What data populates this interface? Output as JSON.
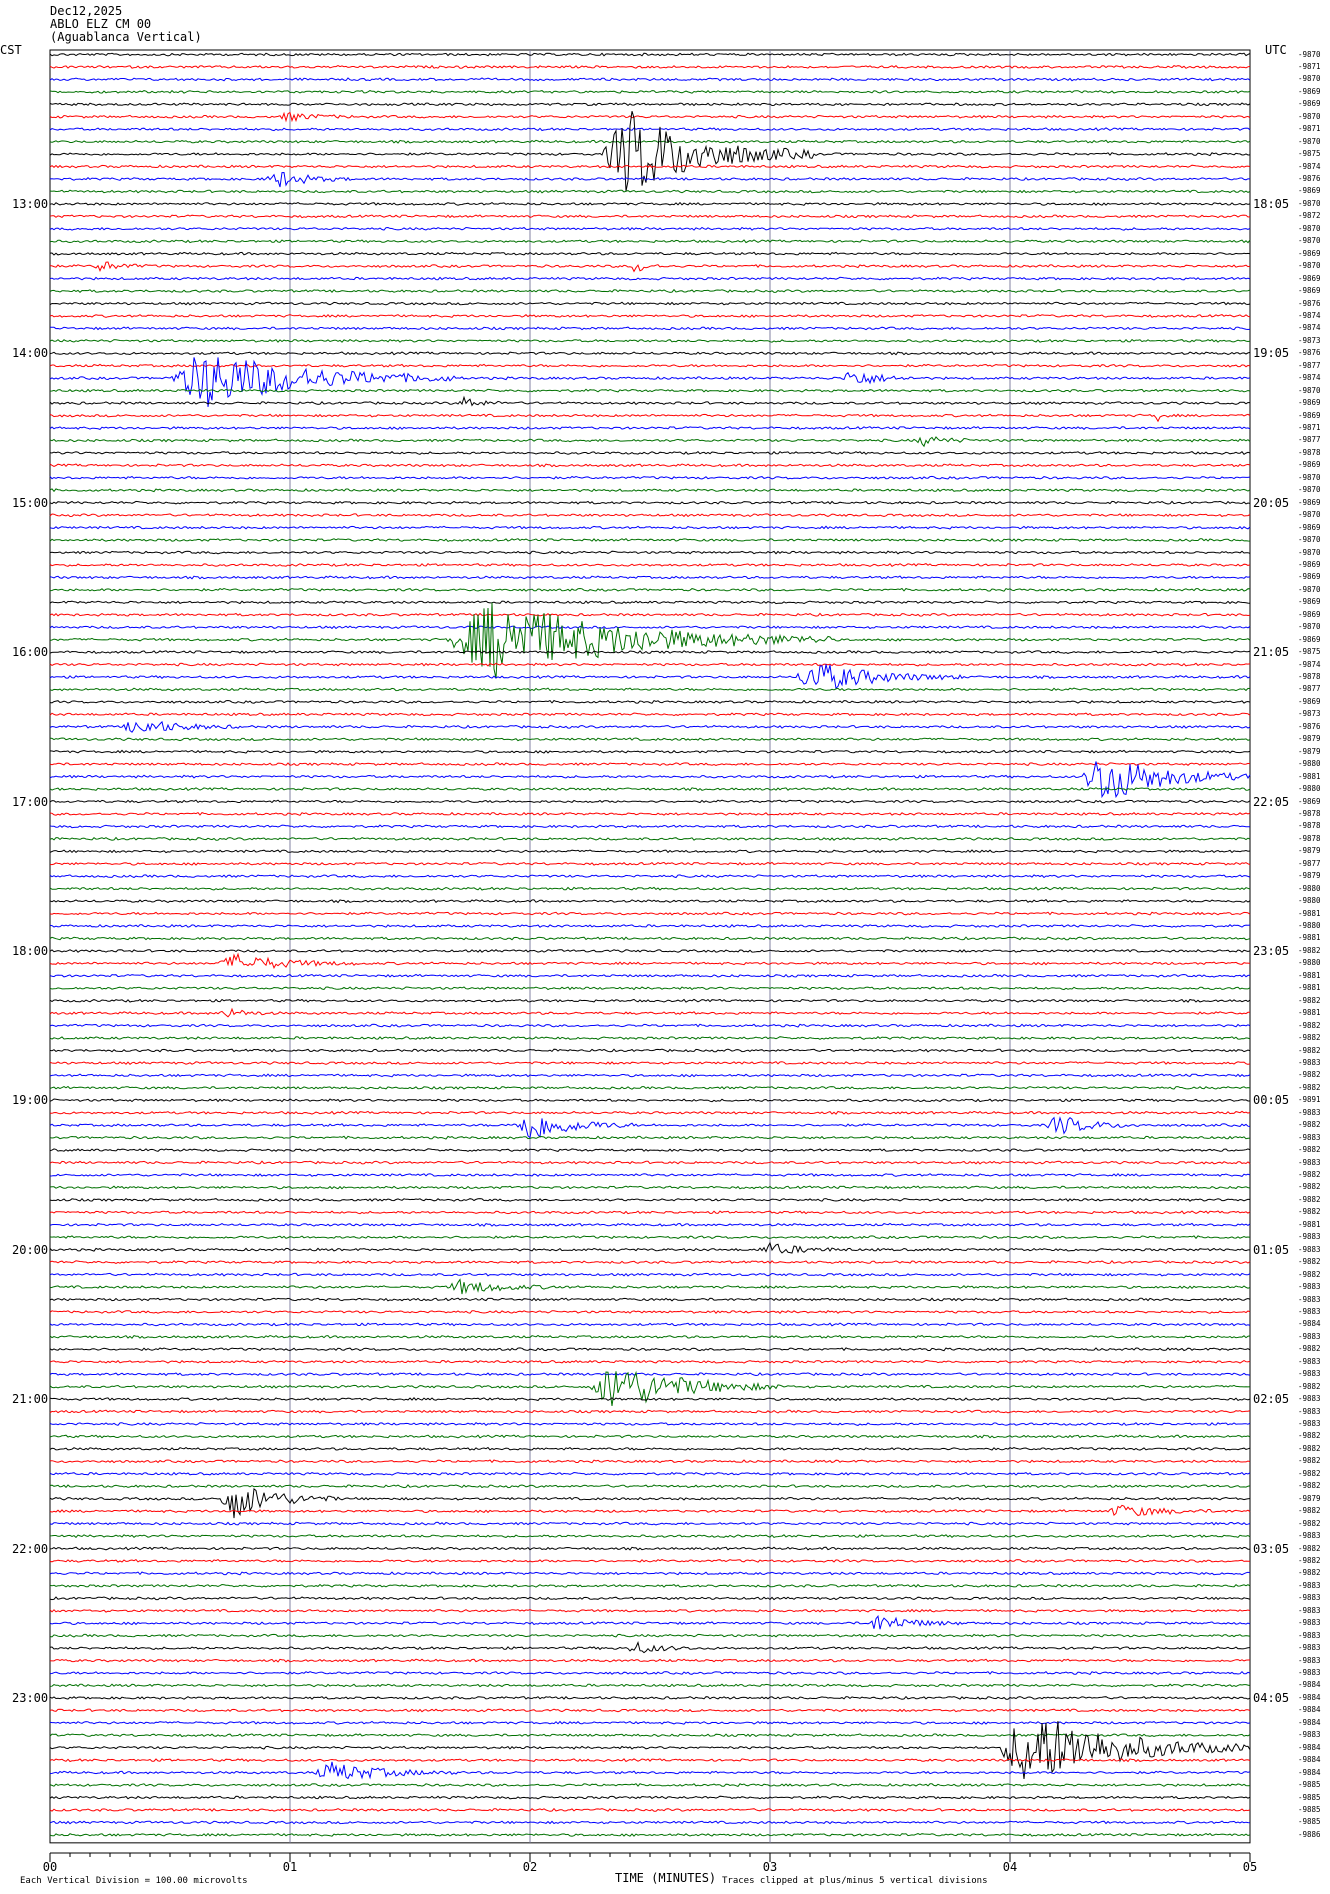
{
  "header": {
    "date": "Dec12,2025",
    "station": "ABLO ELZ CM 00",
    "site": "(Aguablanca Vertical)"
  },
  "left_zone": "CST",
  "right_zone": "UTC",
  "bottom": {
    "xlabel": "TIME (MINUTES)",
    "division_note": "Each Vertical Division =  100.00 microvolts",
    "clip_note": "Traces clipped at plus/minus 5 vertical divisions"
  },
  "colors": {
    "trace_cycle": [
      "#000000",
      "#ff0000",
      "#0000ff",
      "#007000"
    ],
    "grid": "#8080a0",
    "text": "#000000"
  },
  "chart_data": {
    "type": "line",
    "title": "",
    "xlabel": "TIME (MINUTES)",
    "ylabel": "",
    "x_ticks": [
      "00",
      "01",
      "02",
      "03",
      "04",
      "05"
    ],
    "xlim": [
      0,
      5
    ],
    "minutes_per_trace": 5,
    "trace_count": 144,
    "left_hour_labels": [
      {
        "trace": 12,
        "label": "13:00"
      },
      {
        "trace": 24,
        "label": "14:00"
      },
      {
        "trace": 36,
        "label": "15:00"
      },
      {
        "trace": 48,
        "label": "16:00"
      },
      {
        "trace": 60,
        "label": "17:00"
      },
      {
        "trace": 72,
        "label": "18:00"
      },
      {
        "trace": 84,
        "label": "19:00"
      },
      {
        "trace": 96,
        "label": "20:00"
      },
      {
        "trace": 108,
        "label": "21:00"
      },
      {
        "trace": 120,
        "label": "22:00"
      },
      {
        "trace": 132,
        "label": "23:00"
      }
    ],
    "right_hour_labels": [
      {
        "trace": 12,
        "label": "18:05"
      },
      {
        "trace": 24,
        "label": "19:05"
      },
      {
        "trace": 36,
        "label": "20:05"
      },
      {
        "trace": 48,
        "label": "21:05"
      },
      {
        "trace": 60,
        "label": "22:05"
      },
      {
        "trace": 72,
        "label": "23:05"
      },
      {
        "trace": 84,
        "label": "00:05"
      },
      {
        "trace": 96,
        "label": "01:05"
      },
      {
        "trace": 108,
        "label": "02:05"
      },
      {
        "trace": 120,
        "label": "03:05"
      },
      {
        "trace": 132,
        "label": "04:05"
      }
    ],
    "trace_offsets": [
      "-9870",
      "-9871",
      "-9870",
      "-9869",
      "-9869",
      "-9870",
      "-9871",
      "-9870",
      "-9875",
      "-9874",
      "-9876",
      "-9869",
      "-9870",
      "-9872",
      "-9870",
      "-9870",
      "-9869",
      "-9870",
      "-9869",
      "-9869",
      "-9876",
      "-9874",
      "-9874",
      "-9873",
      "-9876",
      "-9877",
      "-9874",
      "-9870",
      "-9869",
      "-9869",
      "-9871",
      "-9877",
      "-9878",
      "-9869",
      "-9870",
      "-9870",
      "-9869",
      "-9870",
      "-9869",
      "-9870",
      "-9870",
      "-9869",
      "-9869",
      "-9870",
      "-9869",
      "-9869",
      "-9870",
      "-9869",
      "-9875",
      "-9874",
      "-9878",
      "-9877",
      "-9869",
      "-9873",
      "-9876",
      "-9879",
      "-9879",
      "-9880",
      "-9881",
      "-9880",
      "-9869",
      "-9878",
      "-9878",
      "-9878",
      "-9879",
      "-9877",
      "-9879",
      "-9880",
      "-9880",
      "-9881",
      "-9880",
      "-9881",
      "-9882",
      "-9880",
      "-9881",
      "-9881",
      "-9882",
      "-9881",
      "-9882",
      "-9882",
      "-9882",
      "-9883",
      "-9882",
      "-9882",
      "-9891",
      "-9883",
      "-9882",
      "-9883",
      "-9882",
      "-9883",
      "-9882",
      "-9882",
      "-9882",
      "-9882",
      "-9881",
      "-9883",
      "-9883",
      "-9882",
      "-9882",
      "-9883",
      "-9883",
      "-9883",
      "-9884",
      "-9883",
      "-9882",
      "-9883",
      "-9883",
      "-9882",
      "-9883",
      "-9883",
      "-9883",
      "-9882",
      "-9882",
      "-9882",
      "-9882",
      "-9882",
      "-9879",
      "-9882",
      "-9882",
      "-9883",
      "-9882",
      "-9882",
      "-9882",
      "-9883",
      "-9883",
      "-9883",
      "-9883",
      "-9883",
      "-9883",
      "-9883",
      "-9883",
      "-9884",
      "-9884",
      "-9884",
      "-9884",
      "-9883",
      "-9884",
      "-9884",
      "-9884",
      "-9885",
      "-9885",
      "-9885",
      "-9885",
      "-9886"
    ],
    "events": [
      {
        "trace": 5,
        "start": 0.95,
        "dur": 0.35,
        "amp": 4
      },
      {
        "trace": 8,
        "start": 2.3,
        "dur": 0.9,
        "amp": 45
      },
      {
        "trace": 10,
        "start": 0.9,
        "dur": 0.35,
        "amp": 9
      },
      {
        "trace": 17,
        "start": 0.18,
        "dur": 0.25,
        "amp": 5
      },
      {
        "trace": 17,
        "start": 2.42,
        "dur": 0.15,
        "amp": 7
      },
      {
        "trace": 26,
        "start": 0.5,
        "dur": 1.2,
        "amp": 30
      },
      {
        "trace": 26,
        "start": 3.3,
        "dur": 0.3,
        "amp": 10
      },
      {
        "trace": 28,
        "start": 1.7,
        "dur": 0.2,
        "amp": 6
      },
      {
        "trace": 29,
        "start": 4.6,
        "dur": 0.06,
        "amp": 8
      },
      {
        "trace": 31,
        "start": 3.6,
        "dur": 0.3,
        "amp": 5
      },
      {
        "trace": 47,
        "start": 1.65,
        "dur": 1.6,
        "amp": 40
      },
      {
        "trace": 50,
        "start": 3.1,
        "dur": 0.7,
        "amp": 16
      },
      {
        "trace": 54,
        "start": 0.3,
        "dur": 0.5,
        "amp": 8
      },
      {
        "trace": 58,
        "start": 4.3,
        "dur": 0.7,
        "amp": 28
      },
      {
        "trace": 73,
        "start": 0.7,
        "dur": 0.6,
        "amp": 9
      },
      {
        "trace": 77,
        "start": 0.7,
        "dur": 0.25,
        "amp": 5
      },
      {
        "trace": 86,
        "start": 1.93,
        "dur": 0.5,
        "amp": 17
      },
      {
        "trace": 86,
        "start": 4.15,
        "dur": 0.4,
        "amp": 10
      },
      {
        "trace": 96,
        "start": 2.95,
        "dur": 0.4,
        "amp": 6
      },
      {
        "trace": 99,
        "start": 1.65,
        "dur": 0.5,
        "amp": 7
      },
      {
        "trace": 107,
        "start": 2.25,
        "dur": 0.8,
        "amp": 25
      },
      {
        "trace": 116,
        "start": 0.7,
        "dur": 0.5,
        "amp": 20
      },
      {
        "trace": 117,
        "start": 4.4,
        "dur": 0.5,
        "amp": 6
      },
      {
        "trace": 126,
        "start": 3.4,
        "dur": 0.4,
        "amp": 9
      },
      {
        "trace": 128,
        "start": 2.4,
        "dur": 0.3,
        "amp": 6
      },
      {
        "trace": 136,
        "start": 3.95,
        "dur": 1.05,
        "amp": 40
      },
      {
        "trace": 138,
        "start": 1.1,
        "dur": 0.6,
        "amp": 10
      }
    ]
  }
}
